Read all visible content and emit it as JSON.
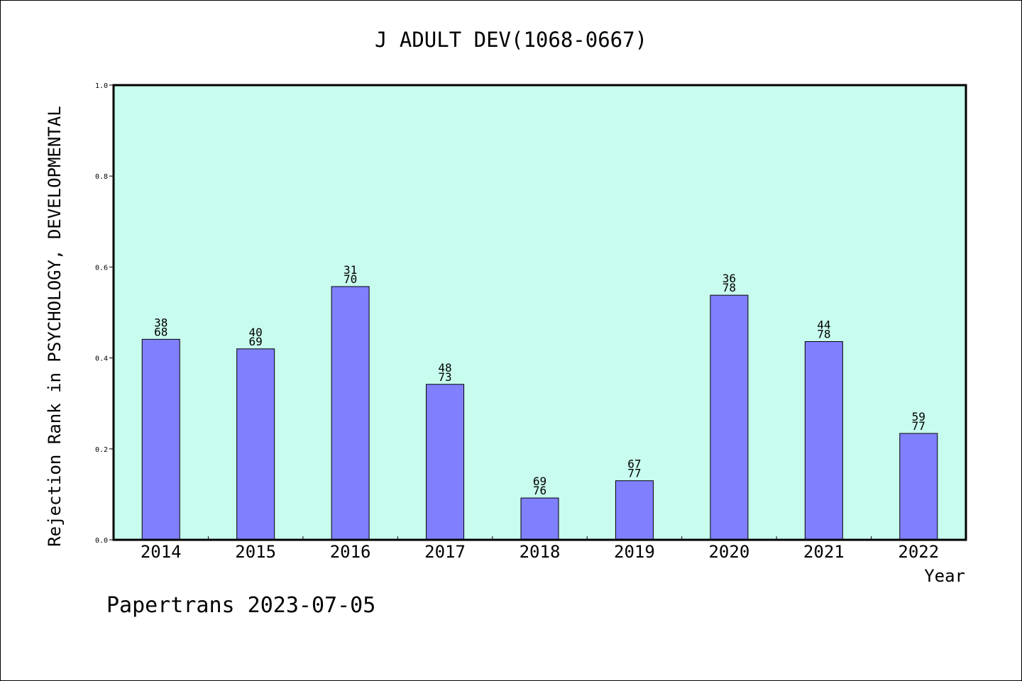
{
  "chart_data": {
    "type": "bar",
    "title": "J ADULT DEV(1068-0667)",
    "xlabel": "Year",
    "ylabel": "Rejection Rank in PSYCHOLOGY, DEVELOPMENTAL",
    "ylim": [
      0,
      1.0
    ],
    "yticks": [
      "0.0",
      "0.2",
      "0.4",
      "0.6",
      "0.8",
      "1.0"
    ],
    "grid": false,
    "categories": [
      "2014",
      "2015",
      "2016",
      "2017",
      "2018",
      "2019",
      "2020",
      "2021",
      "2022"
    ],
    "values": [
      0.441,
      0.42,
      0.557,
      0.342,
      0.092,
      0.13,
      0.538,
      0.436,
      0.234
    ],
    "bar_labels_top": [
      "38",
      "40",
      "31",
      "48",
      "69",
      "67",
      "36",
      "44",
      "59"
    ],
    "bar_labels_bottom": [
      "68",
      "69",
      "70",
      "73",
      "76",
      "77",
      "78",
      "78",
      "77"
    ],
    "bar_color": "#8080ff",
    "plot_background": "#c8fcee"
  },
  "footer": {
    "credit": "Papertrans 2023-07-05"
  }
}
